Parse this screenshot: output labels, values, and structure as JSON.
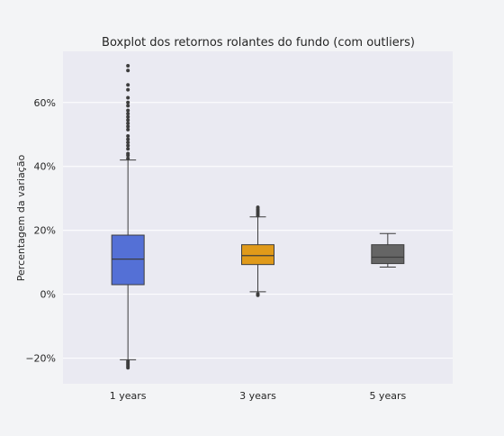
{
  "chart_data": {
    "type": "boxplot",
    "title": "Boxplot dos retornos rolantes do fundo (com outliers)",
    "xlabel": "",
    "ylabel": "Percentagem da variação",
    "ylim": [
      -28,
      76
    ],
    "yticks": [
      -20,
      0,
      20,
      40,
      60
    ],
    "ytick_labels": [
      "−20%",
      "0%",
      "20%",
      "40%",
      "60%"
    ],
    "grid": true,
    "categories": [
      "1 years",
      "3 years",
      "5 years"
    ],
    "boxes": [
      {
        "category": "1 years",
        "color": "#5470d6",
        "whisker_low": -20.5,
        "q1": 3.0,
        "median": 11.0,
        "q3": 18.5,
        "whisker_high": 42.0,
        "outliers": [
          -21.0,
          -21.5,
          -22.0,
          -22.5,
          -23.0,
          42.5,
          43.5,
          44.0,
          45.5,
          46.5,
          47.5,
          48.5,
          49.5,
          51.5,
          52.5,
          53.5,
          54.5,
          55.5,
          56.5,
          57.5,
          59.0,
          60.0,
          61.5,
          64.0,
          65.5,
          70.0,
          71.5
        ]
      },
      {
        "category": "3 years",
        "color": "#e09a1a",
        "whisker_low": 0.8,
        "q1": 9.3,
        "median": 12.1,
        "q3": 15.5,
        "whisker_high": 24.2,
        "outliers": [
          -0.3,
          0.1,
          24.6,
          25.1,
          25.6,
          26.1,
          26.6,
          27.2
        ]
      },
      {
        "category": "5 years",
        "color": "#656565",
        "whisker_low": 8.5,
        "q1": 9.6,
        "median": 11.6,
        "q3": 15.5,
        "whisker_high": 19.0,
        "outliers": []
      }
    ]
  }
}
